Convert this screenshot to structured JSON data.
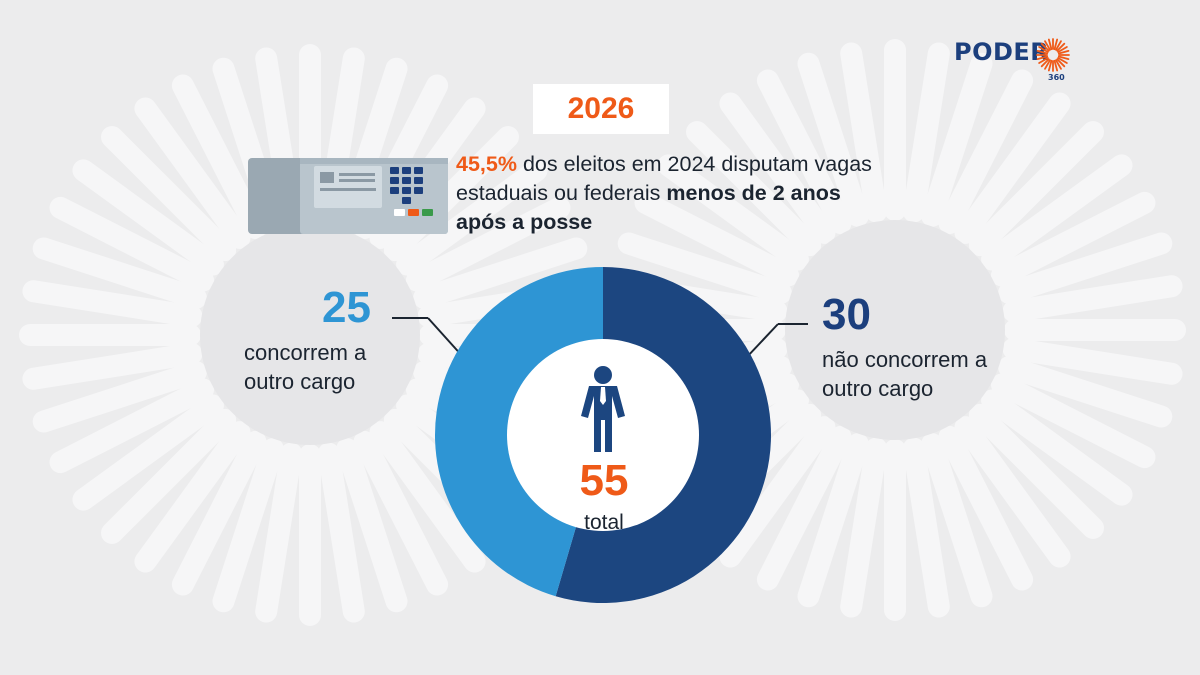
{
  "brand": {
    "name": "PODER",
    "sub": "360"
  },
  "year": "2026",
  "headline": {
    "highlight": "45,5%",
    "text": " dos eleitos em 2024 disputam vagas estaduais ou federais ",
    "bold": "menos de 2 anos após a posse"
  },
  "chart_data": {
    "type": "pie",
    "donut": true,
    "slices": [
      {
        "label": "concorrem a outro cargo",
        "value": 25,
        "color": "#2e95d4"
      },
      {
        "label": "não concorrem a outro cargo",
        "value": 30,
        "color": "#1c4680"
      }
    ],
    "total": {
      "value": "55",
      "label": "total"
    }
  },
  "labels": {
    "left_value": "25",
    "left_text": "concorrem a outro cargo",
    "right_value": "30",
    "right_text": "não concorrem a outro cargo"
  },
  "colors": {
    "accent": "#ef5a18",
    "dark_blue": "#1c4680",
    "light_blue": "#2e95d4",
    "background": "#ececed"
  },
  "icons": [
    "voting-machine-icon",
    "person-icon",
    "sun-logo-icon"
  ]
}
